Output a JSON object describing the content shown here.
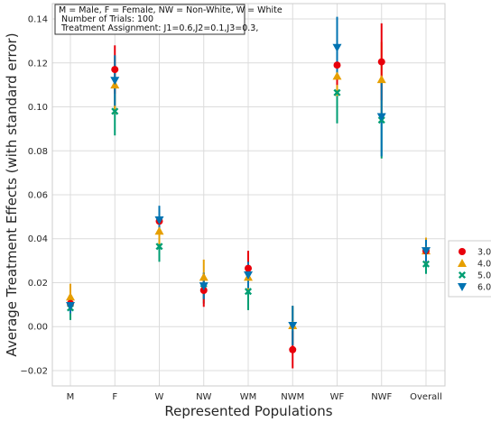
{
  "chart_data": {
    "type": "scatter",
    "xlabel": "Represented Populations",
    "ylabel": "Average Treatment Effects (with standard error)",
    "categories": [
      "M",
      "F",
      "W",
      "NW",
      "WM",
      "NWM",
      "WF",
      "NWF",
      "Overall"
    ],
    "ylim": [
      -0.027,
      0.147
    ],
    "yticks": [
      -0.02,
      0.0,
      0.02,
      0.04,
      0.06,
      0.08,
      0.1,
      0.12,
      0.14
    ],
    "ytick_labels": [
      "−0.02",
      "0.00",
      "0.02",
      "0.04",
      "0.06",
      "0.08",
      "0.10",
      "0.12",
      "0.14"
    ],
    "grid": true,
    "legend_position": "right",
    "annotation": [
      "M = Male, F = Female, NW = Non-White, W = White",
      " Number of Trials: 100",
      " Treatment Assignment: J1=0.6,J2=0.1,J3=0.3,"
    ],
    "series": [
      {
        "name": "3.0",
        "color": "#e8000b",
        "marker": "circle",
        "values": [
          0.0105,
          0.117,
          0.048,
          0.0165,
          0.0265,
          -0.0105,
          0.119,
          0.1205,
          0.0345
        ],
        "errors": [
          0.002,
          0.011,
          0.005,
          0.0075,
          0.008,
          0.0085,
          0.009,
          0.0175,
          0.004
        ]
      },
      {
        "name": "4.0",
        "color": "#e69f00",
        "marker": "triangle-up",
        "values": [
          0.0135,
          0.11,
          0.0435,
          0.0225,
          0.0225,
          0.0005,
          0.114,
          0.1125,
          0.0345
        ],
        "errors": [
          0.006,
          0.013,
          0.006,
          0.008,
          0.006,
          0.009,
          0.009,
          0.017,
          0.006
        ]
      },
      {
        "name": "5.0",
        "color": "#009e73",
        "marker": "x",
        "values": [
          0.0085,
          0.098,
          0.0365,
          0.0175,
          0.016,
          0.0005,
          0.1065,
          0.094,
          0.0285
        ],
        "errors": [
          0.0055,
          0.011,
          0.007,
          0.007,
          0.0085,
          0.0085,
          0.014,
          0.0175,
          0.0045
        ]
      },
      {
        "name": "6.0",
        "color": "#0173b2",
        "marker": "triangle-down",
        "values": [
          0.0095,
          0.112,
          0.0485,
          0.0185,
          0.0235,
          0.0005,
          0.127,
          0.0955,
          0.0345
        ],
        "errors": [
          0.0035,
          0.0115,
          0.0065,
          0.006,
          0.006,
          0.009,
          0.014,
          0.018,
          0.005
        ]
      }
    ]
  }
}
